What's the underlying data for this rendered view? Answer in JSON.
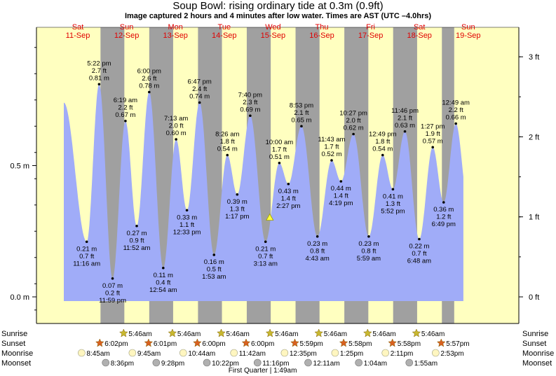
{
  "title": "Soup Bowl: rising  ordinary tide at 0.3m (0.9ft)",
  "subtitle": "Image captured 2 hours and 4 minutes after low water. Times are AST (UTC –4.0hrs)",
  "colors": {
    "day": "#ffffc0",
    "night": "#a0a0a0",
    "tide_fill": "#a0acf8",
    "day_label": "#e00000",
    "sunrise_star": "#c8b830",
    "sunset_star": "#d86020",
    "moonrise": "#fff6c0",
    "moonset": "#b0b0b0"
  },
  "days": [
    {
      "dow": "Sat",
      "date": "11-Sep"
    },
    {
      "dow": "Sun",
      "date": "12-Sep"
    },
    {
      "dow": "Mon",
      "date": "13-Sep"
    },
    {
      "dow": "Tue",
      "date": "14-Sep"
    },
    {
      "dow": "Wed",
      "date": "15-Sep"
    },
    {
      "dow": "Thu",
      "date": "16-Sep"
    },
    {
      "dow": "Fri",
      "date": "17-Sep"
    },
    {
      "dow": "Sat",
      "date": "18-Sep"
    },
    {
      "dow": "Sun",
      "date": "19-Sep"
    }
  ],
  "left_ticks": [
    "0.5 m",
    "0.0 m"
  ],
  "right_ticks": [
    "3 ft",
    "2 ft",
    "1 ft",
    "0 ft"
  ],
  "chart_data": {
    "type": "area",
    "x_unit": "hours after 11-Sep 00:00 AST",
    "ylim_m": [
      -0.1,
      0.96
    ],
    "night_bands_h": [
      [
        18.05,
        29.77
      ],
      [
        42.02,
        53.77
      ],
      [
        66.0,
        77.77
      ],
      [
        89.98,
        101.77
      ],
      [
        113.98,
        125.77
      ],
      [
        137.97,
        149.77
      ],
      [
        161.97,
        173.77
      ],
      [
        185.95,
        192
      ]
    ],
    "tides": [
      {
        "t": 11.27,
        "time": "11:16 am",
        "m": 0.21,
        "ft": "0.7 ft",
        "type": "low"
      },
      {
        "t": 17.37,
        "time": "5:22 pm",
        "m": 0.81,
        "ft": "2.7 ft",
        "type": "high"
      },
      {
        "t": 23.98,
        "time": "11:59 pm",
        "m": 0.07,
        "ft": "0.2 ft",
        "type": "low"
      },
      {
        "t": 30.32,
        "time": "6:19 am",
        "m": 0.67,
        "ft": "2.2 ft",
        "type": "high"
      },
      {
        "t": 35.87,
        "time": "11:52 am",
        "m": 0.27,
        "ft": "0.9 ft",
        "type": "low"
      },
      {
        "t": 42.0,
        "time": "6:00 pm",
        "m": 0.78,
        "ft": "2.6 ft",
        "type": "high"
      },
      {
        "t": 48.9,
        "time": "12:54 am",
        "m": 0.11,
        "ft": "0.4 ft",
        "type": "low"
      },
      {
        "t": 55.22,
        "time": "7:13 am",
        "m": 0.6,
        "ft": "2.0 ft",
        "type": "high"
      },
      {
        "t": 60.55,
        "time": "12:33 pm",
        "m": 0.33,
        "ft": "1.1 ft",
        "type": "low"
      },
      {
        "t": 66.78,
        "time": "6:47 pm",
        "m": 0.74,
        "ft": "2.4 ft",
        "type": "high"
      },
      {
        "t": 73.88,
        "time": "1:53 am",
        "m": 0.16,
        "ft": "0.5 ft",
        "type": "low"
      },
      {
        "t": 80.43,
        "time": "8:26 am",
        "m": 0.54,
        "ft": "1.8 ft",
        "type": "high"
      },
      {
        "t": 85.28,
        "time": "1:17 pm",
        "m": 0.39,
        "ft": "1.3 ft",
        "type": "low"
      },
      {
        "t": 91.67,
        "time": "7:40 pm",
        "m": 0.69,
        "ft": "2.3 ft",
        "type": "high"
      },
      {
        "t": 99.22,
        "time": "3:13 am",
        "m": 0.21,
        "ft": "0.7 ft",
        "type": "low"
      },
      {
        "t": 106.0,
        "time": "10:00 am",
        "m": 0.51,
        "ft": "1.7 ft",
        "type": "high"
      },
      {
        "t": 110.45,
        "time": "2:27 pm",
        "m": 0.43,
        "ft": "1.4 ft",
        "type": "low"
      },
      {
        "t": 116.88,
        "time": "8:53 pm",
        "m": 0.65,
        "ft": "2.1 ft",
        "type": "high"
      },
      {
        "t": 124.72,
        "time": "4:43 am",
        "m": 0.23,
        "ft": "0.8 ft",
        "type": "low"
      },
      {
        "t": 131.72,
        "time": "11:43 am",
        "m": 0.52,
        "ft": "1.7 ft",
        "type": "high"
      },
      {
        "t": 136.32,
        "time": "4:19 pm",
        "m": 0.44,
        "ft": "1.4 ft",
        "type": "low"
      },
      {
        "t": 142.45,
        "time": "10:27 pm",
        "m": 0.62,
        "ft": "2.0 ft",
        "type": "high"
      },
      {
        "t": 149.98,
        "time": "5:59 am",
        "m": 0.23,
        "ft": "0.8 ft",
        "type": "low"
      },
      {
        "t": 156.82,
        "time": "12:49 pm",
        "m": 0.54,
        "ft": "1.8 ft",
        "type": "high"
      },
      {
        "t": 161.87,
        "time": "5:52 pm",
        "m": 0.41,
        "ft": "1.3 ft",
        "type": "low"
      },
      {
        "t": 167.77,
        "time": "11:46 pm",
        "m": 0.63,
        "ft": "2.1 ft",
        "type": "high"
      },
      {
        "t": 174.8,
        "time": "6:48 am",
        "m": 0.22,
        "ft": "0.7 ft",
        "type": "low"
      },
      {
        "t": 181.45,
        "time": "1:27 pm",
        "m": 0.57,
        "ft": "1.9 ft",
        "type": "high"
      },
      {
        "t": 186.82,
        "time": "6:49 pm",
        "m": 0.36,
        "ft": "1.2 ft",
        "type": "low"
      },
      {
        "t": 192.82,
        "time": "12:49 am",
        "m": 0.66,
        "ft": "2.2 ft",
        "type": "high"
      }
    ],
    "curve_start": {
      "t": 0.0,
      "m": 0.74
    },
    "curve_end_t": 196.5,
    "current": {
      "t": 101.3,
      "m": 0.3
    }
  },
  "sun_moon": {
    "row_labels": {
      "sunrise": "Sunrise",
      "sunset": "Sunset",
      "moonrise": "Moonrise",
      "moonset": "Moonset"
    },
    "sunrise": [
      {
        "t": 29.77,
        "label": "5:46am"
      },
      {
        "t": 53.77,
        "label": "5:46am"
      },
      {
        "t": 77.77,
        "label": "5:46am"
      },
      {
        "t": 101.77,
        "label": "5:46am"
      },
      {
        "t": 125.77,
        "label": "5:46am"
      },
      {
        "t": 149.77,
        "label": "5:46am"
      },
      {
        "t": 173.77,
        "label": "5:46am"
      }
    ],
    "sunset": [
      {
        "t": 18.03,
        "label": "6:02pm"
      },
      {
        "t": 42.02,
        "label": "6:01pm"
      },
      {
        "t": 66.0,
        "label": "6:00pm"
      },
      {
        "t": 90.0,
        "label": "6:00pm"
      },
      {
        "t": 113.98,
        "label": "5:59pm"
      },
      {
        "t": 137.97,
        "label": "5:58pm"
      },
      {
        "t": 161.97,
        "label": "5:58pm"
      },
      {
        "t": 185.95,
        "label": "5:57pm"
      }
    ],
    "moonrise": [
      {
        "t": 8.75,
        "label": "8:45am"
      },
      {
        "t": 33.75,
        "label": "9:45am"
      },
      {
        "t": 58.73,
        "label": "10:44am"
      },
      {
        "t": 83.7,
        "label": "11:42am"
      },
      {
        "t": 108.58,
        "label": "12:35pm"
      },
      {
        "t": 133.42,
        "label": "1:25pm"
      },
      {
        "t": 158.18,
        "label": "2:11pm"
      },
      {
        "t": 182.88,
        "label": "2:53pm"
      }
    ],
    "moonset": [
      {
        "t": 20.6,
        "label": "8:36pm"
      },
      {
        "t": 45.47,
        "label": "9:28pm"
      },
      {
        "t": 70.37,
        "label": "10:22pm"
      },
      {
        "t": 95.27,
        "label": "11:16pm"
      },
      {
        "t": 120.18,
        "label": "12:11am"
      },
      {
        "t": 145.07,
        "label": "1:04am"
      },
      {
        "t": 169.92,
        "label": "1:55am"
      }
    ],
    "moon_phase": {
      "t": 97.8,
      "label": "First Quarter | 1:49am"
    }
  }
}
